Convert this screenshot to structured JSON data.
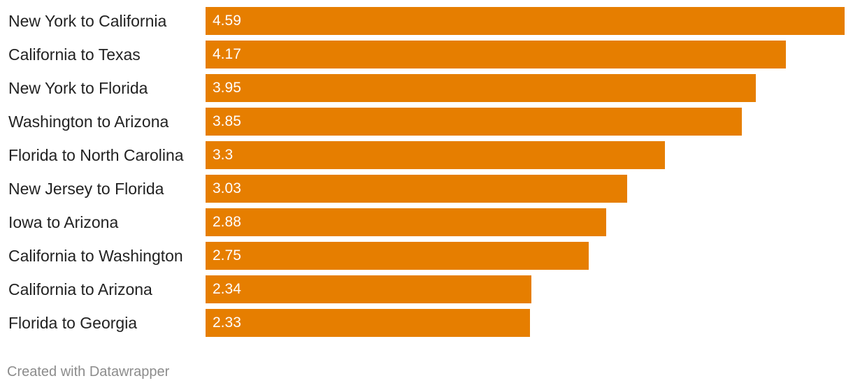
{
  "chart_data": {
    "type": "bar",
    "orientation": "horizontal",
    "categories": [
      "New York to California",
      "California to Texas",
      "New York to Florida",
      "Washington to Arizona",
      "Florida to North Carolina",
      "New Jersey to Florida",
      "Iowa to Arizona",
      "California to Washington",
      "California to Arizona",
      "Florida to Georgia"
    ],
    "values": [
      4.59,
      4.17,
      3.95,
      3.85,
      3.3,
      3.03,
      2.88,
      2.75,
      2.34,
      2.33
    ],
    "value_labels": [
      "4.59",
      "4.17",
      "3.95",
      "3.85",
      "3.3",
      "3.03",
      "2.88",
      "2.75",
      "2.34",
      "2.33"
    ],
    "bar_color": "#e67e00",
    "title": "",
    "xlabel": "",
    "ylabel": "",
    "xlim": [
      0,
      4.59
    ],
    "grid": false,
    "legend": "none"
  },
  "footer": {
    "credit": "Created with Datawrapper"
  },
  "colors": {
    "bar": "#e67e00",
    "label_text": "#222222",
    "value_text": "#ffffff",
    "footer_text": "#8c8c8c"
  }
}
